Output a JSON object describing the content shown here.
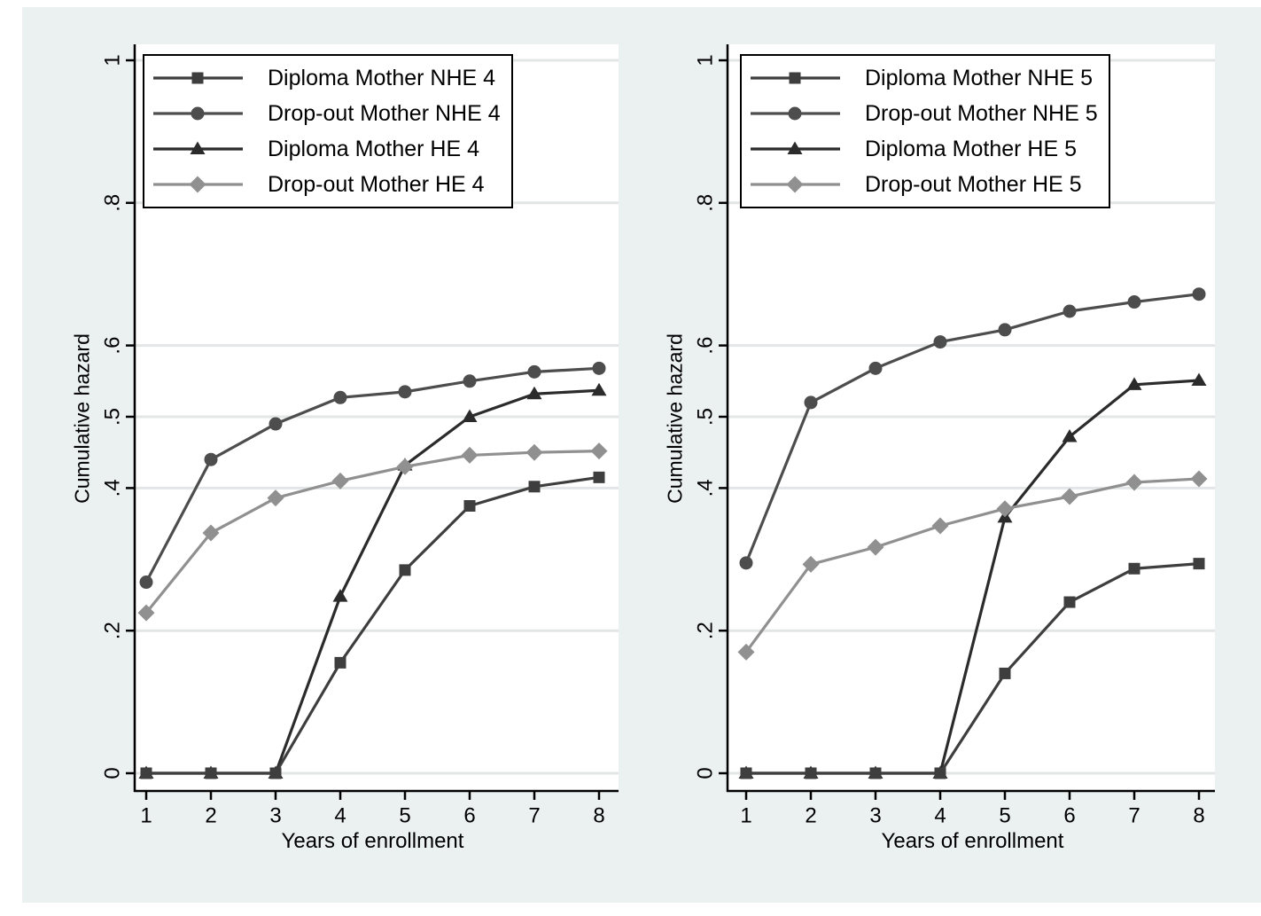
{
  "figure": {
    "background": "#ffffff",
    "canvas_color": "#ebf0f0",
    "plot_bg": "#ffffff",
    "grid_color": "#e3e6e6",
    "axis_color": "#000000",
    "legend_border_color": "#000000",
    "legend_bg": "#ffffff"
  },
  "chart_data": [
    {
      "type": "line",
      "panel": "left",
      "title": "",
      "xlabel": "Years of enrollment",
      "ylabel": "Cumulative hazard",
      "x": [
        1,
        2,
        3,
        4,
        5,
        6,
        7,
        8
      ],
      "xlim": [
        1,
        8
      ],
      "ylim": [
        0,
        1
      ],
      "grid": true,
      "legend_position": "top-left",
      "yticks": [
        {
          "v": 0,
          "label": "0"
        },
        {
          "v": 0.2,
          "label": ".2"
        },
        {
          "v": 0.4,
          "label": ".4"
        },
        {
          "v": 0.5,
          "label": ".5"
        },
        {
          "v": 0.6,
          "label": ".6"
        },
        {
          "v": 0.8,
          "label": ".8"
        },
        {
          "v": 1,
          "label": "1"
        }
      ],
      "series": [
        {
          "name": "Diploma Mother NHE 4",
          "marker": "square",
          "color": "#3e3e3e",
          "values": [
            0,
            0,
            0,
            0.155,
            0.285,
            0.375,
            0.402,
            0.415
          ]
        },
        {
          "name": "Drop-out Mother NHE 4",
          "marker": "circle",
          "color": "#4d4d4d",
          "values": [
            0.268,
            0.44,
            0.49,
            0.527,
            0.535,
            0.55,
            0.563,
            0.568
          ]
        },
        {
          "name": "Diploma Mother HE 4",
          "marker": "triangle",
          "color": "#2b2b2b",
          "values": [
            0,
            0,
            0,
            0.248,
            0.432,
            0.5,
            0.532,
            0.537
          ]
        },
        {
          "name": "Drop-out Mother HE 4",
          "marker": "diamond",
          "color": "#909090",
          "values": [
            0.225,
            0.337,
            0.386,
            0.41,
            0.43,
            0.446,
            0.45,
            0.452
          ]
        }
      ]
    },
    {
      "type": "line",
      "panel": "right",
      "title": "",
      "xlabel": "Years of enrollment",
      "ylabel": "Cumulative hazard",
      "x": [
        1,
        2,
        3,
        4,
        5,
        6,
        7,
        8
      ],
      "xlim": [
        1,
        8
      ],
      "ylim": [
        0,
        1
      ],
      "grid": true,
      "legend_position": "top-left",
      "yticks": [
        {
          "v": 0,
          "label": "0"
        },
        {
          "v": 0.2,
          "label": ".2"
        },
        {
          "v": 0.4,
          "label": ".4"
        },
        {
          "v": 0.5,
          "label": ".5"
        },
        {
          "v": 0.6,
          "label": ".6"
        },
        {
          "v": 0.8,
          "label": ".8"
        },
        {
          "v": 1,
          "label": "1"
        }
      ],
      "series": [
        {
          "name": "Diploma Mother NHE 5",
          "marker": "square",
          "color": "#3e3e3e",
          "values": [
            0,
            0,
            0,
            0,
            0.14,
            0.24,
            0.287,
            0.294
          ]
        },
        {
          "name": "Drop-out Mother NHE 5",
          "marker": "circle",
          "color": "#4d4d4d",
          "values": [
            0.295,
            0.52,
            0.568,
            0.605,
            0.622,
            0.648,
            0.661,
            0.672
          ]
        },
        {
          "name": "Diploma Mother HE 5",
          "marker": "triangle",
          "color": "#2b2b2b",
          "values": [
            0,
            0,
            0,
            0,
            0.359,
            0.472,
            0.545,
            0.551
          ]
        },
        {
          "name": "Drop-out Mother HE 5",
          "marker": "diamond",
          "color": "#909090",
          "values": [
            0.17,
            0.293,
            0.317,
            0.347,
            0.371,
            0.388,
            0.408,
            0.413
          ]
        }
      ]
    }
  ]
}
